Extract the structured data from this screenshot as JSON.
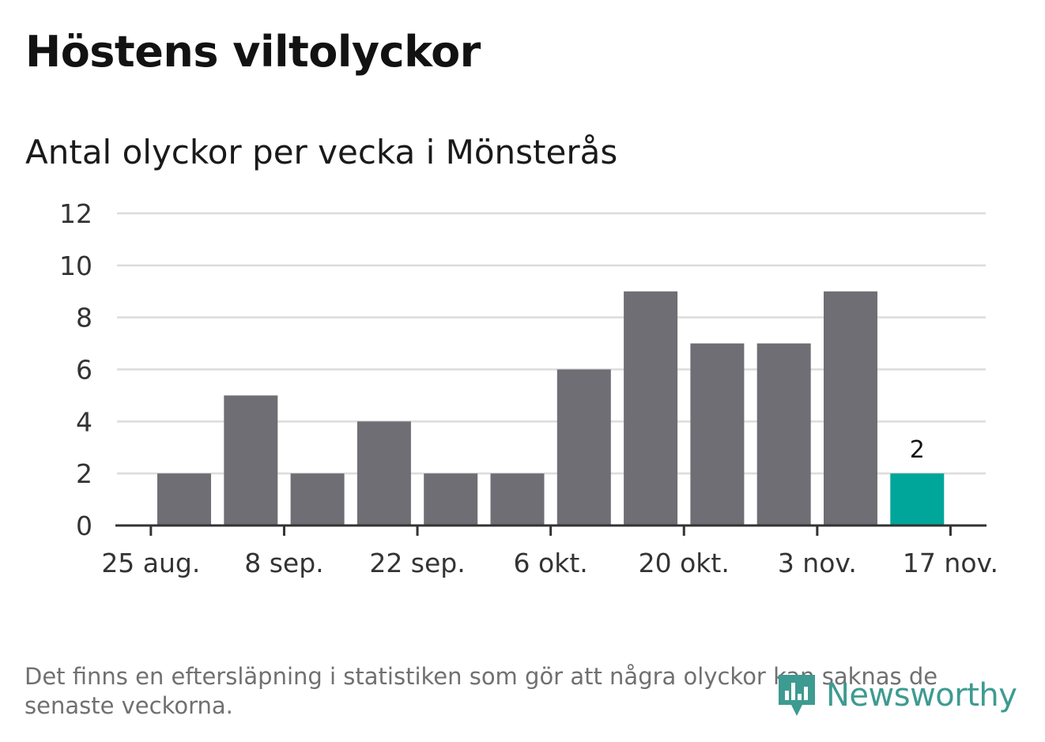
{
  "title": "Höstens viltolyckor",
  "subtitle": "Antal olyckor per vecka i Mönsterås",
  "chart_data": {
    "type": "bar",
    "title": "Höstens viltolyckor",
    "subtitle": "Antal olyckor per vecka i Mönsterås",
    "xlabel": "",
    "ylabel": "",
    "ylim": [
      0,
      12
    ],
    "yticks": [
      0,
      2,
      4,
      6,
      8,
      10,
      12
    ],
    "xticks": [
      "25 aug.",
      "8 sep.",
      "22 sep.",
      "6 okt.",
      "20 okt.",
      "3 nov.",
      "17 nov."
    ],
    "grid": true,
    "legend": "none",
    "series": [
      {
        "values": [
          2,
          5,
          2,
          4,
          2,
          2,
          6,
          9,
          7,
          7,
          9,
          2
        ]
      }
    ],
    "highlight_index": 11,
    "highlight_label": "2",
    "colors": {
      "bar": "#6f6e74",
      "highlight": "#00a69a",
      "grid": "#dcdcdc",
      "axis": "#333333"
    }
  },
  "footnote": "Det finns en eftersläpning i statistiken som gör att några olyckor kan saknas de senaste veckorna.",
  "logo": {
    "text": "Newsworthy",
    "icon": "newsworthy-logo-icon",
    "color": "#3d9b91"
  }
}
